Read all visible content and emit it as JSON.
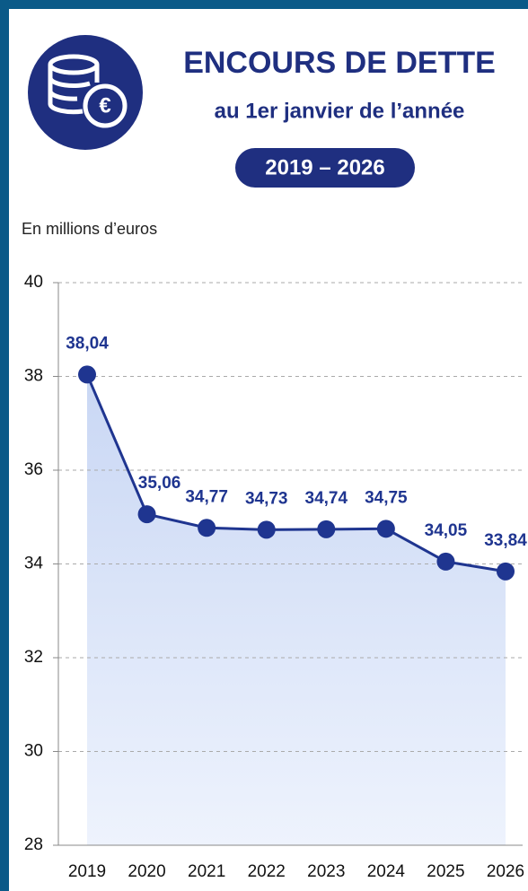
{
  "chart_data": {
    "type": "line",
    "title": "ENCOURS DE DETTE",
    "subtitle": "au 1er janvier de l’année",
    "period": "2019 – 2026",
    "y_label": "En millions d’euros",
    "categories": [
      "2019",
      "2020",
      "2021",
      "2022",
      "2023",
      "2024",
      "2025",
      "2026"
    ],
    "values": [
      38.04,
      35.06,
      34.77,
      34.73,
      34.74,
      34.75,
      34.05,
      33.84
    ],
    "value_labels": [
      "38,04",
      "35,06",
      "34,77",
      "34,73",
      "34,74",
      "34,75",
      "34,05",
      "33,84"
    ],
    "color": "#1f3590",
    "ylim": [
      28,
      40
    ],
    "yticks": [
      28,
      30,
      32,
      34,
      36,
      38,
      40
    ],
    "grid": true
  }
}
